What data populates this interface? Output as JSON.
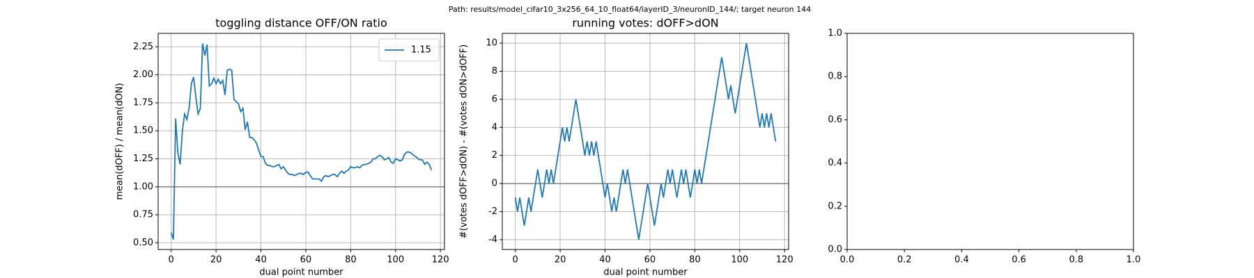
{
  "figure_title": "Path: results/model_cifar10_3x256_64_10_float64/layerID_3/neuronID_144/; target neuron 144",
  "chart_data": [
    {
      "type": "line",
      "title": "toggling distance OFF/ON ratio",
      "xlabel": "dual point number",
      "ylabel": "mean(dOFF) / mean(dON)",
      "x": [
        0,
        1,
        2,
        3,
        4,
        5,
        6,
        7,
        8,
        9,
        10,
        11,
        12,
        13,
        14,
        15,
        16,
        17,
        18,
        19,
        20,
        21,
        22,
        23,
        24,
        25,
        26,
        27,
        28,
        29,
        30,
        31,
        32,
        33,
        34,
        35,
        36,
        37,
        38,
        39,
        40,
        41,
        42,
        43,
        44,
        45,
        46,
        47,
        48,
        49,
        50,
        51,
        52,
        53,
        54,
        55,
        56,
        57,
        58,
        59,
        60,
        61,
        62,
        63,
        64,
        65,
        66,
        67,
        68,
        69,
        70,
        71,
        72,
        73,
        74,
        75,
        76,
        77,
        78,
        79,
        80,
        81,
        82,
        83,
        84,
        85,
        86,
        87,
        88,
        89,
        90,
        91,
        92,
        93,
        94,
        95,
        96,
        97,
        98,
        99,
        100,
        101,
        102,
        103,
        104,
        105,
        106,
        107,
        108,
        109,
        110,
        111,
        112,
        113,
        114,
        115,
        116
      ],
      "series": [
        {
          "name": "1.15",
          "color": "#1f77b4",
          "values": [
            0.59,
            0.53,
            1.61,
            1.3,
            1.2,
            1.5,
            1.65,
            1.6,
            1.7,
            1.92,
            1.98,
            1.8,
            1.65,
            1.7,
            2.28,
            2.17,
            2.27,
            1.9,
            1.92,
            1.97,
            1.92,
            1.96,
            1.92,
            1.95,
            1.82,
            2.04,
            2.05,
            2.04,
            1.78,
            1.76,
            1.74,
            1.67,
            1.7,
            1.51,
            1.58,
            1.44,
            1.44,
            1.42,
            1.39,
            1.33,
            1.27,
            1.27,
            1.21,
            1.19,
            1.19,
            1.18,
            1.18,
            1.19,
            1.2,
            1.16,
            1.18,
            1.15,
            1.12,
            1.11,
            1.11,
            1.1,
            1.11,
            1.12,
            1.12,
            1.11,
            1.13,
            1.13,
            1.1,
            1.07,
            1.07,
            1.07,
            1.07,
            1.05,
            1.09,
            1.1,
            1.09,
            1.1,
            1.11,
            1.11,
            1.09,
            1.12,
            1.14,
            1.12,
            1.14,
            1.15,
            1.18,
            1.17,
            1.17,
            1.18,
            1.17,
            1.19,
            1.2,
            1.2,
            1.21,
            1.22,
            1.25,
            1.25,
            1.27,
            1.28,
            1.27,
            1.24,
            1.25,
            1.26,
            1.22,
            1.21,
            1.25,
            1.24,
            1.23,
            1.24,
            1.29,
            1.31,
            1.31,
            1.3,
            1.28,
            1.27,
            1.25,
            1.24,
            1.24,
            1.2,
            1.22,
            1.2,
            1.15
          ]
        }
      ],
      "hline": 1,
      "hline_color": "#808080",
      "xlim": [
        -5.8,
        121.8
      ],
      "xticks": [
        0,
        20,
        40,
        60,
        80,
        100,
        120
      ],
      "ylim": [
        0.44,
        2.37
      ],
      "yticks": [
        {
          "value": 0.5,
          "label": "0.50"
        },
        {
          "value": 0.75,
          "label": "0.75"
        },
        {
          "value": 1,
          "label": "1.00"
        },
        {
          "value": 1.25,
          "label": "1.25"
        },
        {
          "value": 1.5,
          "label": "1.50"
        },
        {
          "value": 1.75,
          "label": "1.75"
        },
        {
          "value": 2,
          "label": "2.00"
        },
        {
          "value": 2.25,
          "label": "2.25"
        }
      ],
      "grid": true,
      "legend": "upper right"
    },
    {
      "type": "line",
      "title": "running votes: dOFF>dON",
      "xlabel": "dual point number",
      "ylabel": "#(votes dOFF>dON) - #(votes dON>dOFF)",
      "x": [
        0,
        1,
        2,
        3,
        4,
        5,
        6,
        7,
        8,
        9,
        10,
        11,
        12,
        13,
        14,
        15,
        16,
        17,
        18,
        19,
        20,
        21,
        22,
        23,
        24,
        25,
        26,
        27,
        28,
        29,
        30,
        31,
        32,
        33,
        34,
        35,
        36,
        37,
        38,
        39,
        40,
        41,
        42,
        43,
        44,
        45,
        46,
        47,
        48,
        49,
        50,
        51,
        52,
        53,
        54,
        55,
        56,
        57,
        58,
        59,
        60,
        61,
        62,
        63,
        64,
        65,
        66,
        67,
        68,
        69,
        70,
        71,
        72,
        73,
        74,
        75,
        76,
        77,
        78,
        79,
        80,
        81,
        82,
        83,
        84,
        85,
        86,
        87,
        88,
        89,
        90,
        91,
        92,
        93,
        94,
        95,
        96,
        97,
        98,
        99,
        100,
        101,
        102,
        103,
        104,
        105,
        106,
        107,
        108,
        109,
        110,
        111,
        112,
        113,
        114,
        115,
        116
      ],
      "series": [
        {
          "color": "#1f77b4",
          "values": [
            -1,
            -2,
            -1,
            -2,
            -3,
            -2,
            -1,
            -2,
            -1,
            0,
            1,
            0,
            -1,
            0,
            1,
            0,
            1,
            0,
            1,
            2,
            3,
            4,
            3,
            4,
            3,
            4,
            5,
            6,
            5,
            4,
            3,
            2,
            3,
            2,
            3,
            2,
            3,
            2,
            1,
            0,
            -1,
            0,
            -1,
            -2,
            -1,
            -2,
            -1,
            0,
            1,
            0,
            1,
            0,
            -1,
            -2,
            -3,
            -4,
            -3,
            -2,
            -1,
            0,
            -1,
            -2,
            -3,
            -2,
            -1,
            0,
            -1,
            0,
            1,
            0,
            1,
            0,
            -1,
            0,
            1,
            0,
            1,
            0,
            -1,
            0,
            1,
            0,
            1,
            0,
            1,
            2,
            3,
            4,
            5,
            6,
            7,
            8,
            9,
            8,
            7,
            6,
            7,
            6,
            5,
            6,
            7,
            8,
            9,
            10,
            9,
            8,
            7,
            6,
            5,
            4,
            5,
            4,
            5,
            4,
            5,
            4,
            3
          ]
        }
      ],
      "hline": 0,
      "hline_color": "#808080",
      "xlim": [
        -5.8,
        121.8
      ],
      "xticks": [
        0,
        20,
        40,
        60,
        80,
        100,
        120
      ],
      "ylim": [
        -4.7,
        10.7
      ],
      "yticks": [
        -4,
        -2,
        0,
        2,
        4,
        6,
        8,
        10
      ],
      "grid": true
    },
    {
      "type": "empty",
      "xlim": [
        0,
        1
      ],
      "xticks": [
        {
          "value": 0,
          "label": "0.0"
        },
        {
          "value": 0.2,
          "label": "0.2"
        },
        {
          "value": 0.4,
          "label": "0.4"
        },
        {
          "value": 0.6,
          "label": "0.6"
        },
        {
          "value": 0.8,
          "label": "0.8"
        },
        {
          "value": 1,
          "label": "1.0"
        }
      ],
      "ylim": [
        0,
        1
      ],
      "yticks": [
        {
          "value": 0,
          "label": "0.0"
        },
        {
          "value": 0.2,
          "label": "0.2"
        },
        {
          "value": 0.4,
          "label": "0.4"
        },
        {
          "value": 0.6,
          "label": "0.6"
        },
        {
          "value": 0.8,
          "label": "0.8"
        },
        {
          "value": 1,
          "label": "1.0"
        }
      ],
      "grid": false
    }
  ]
}
